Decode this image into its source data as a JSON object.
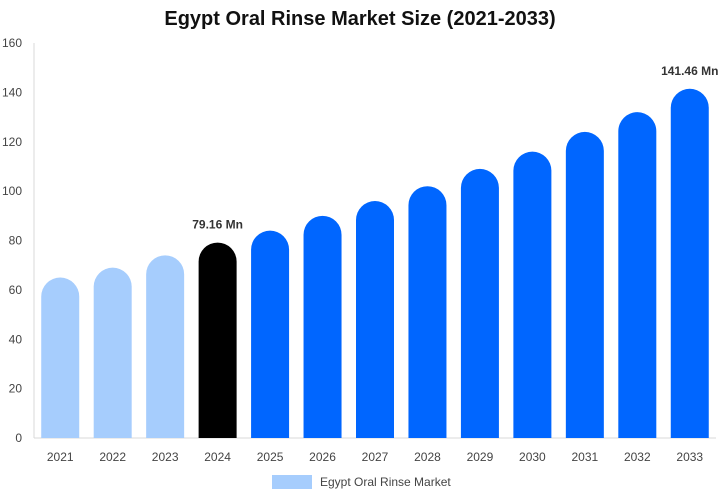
{
  "chart_data": {
    "type": "bar",
    "title": "Egypt Oral Rinse Market Size (2021-2033)",
    "xlabel": "",
    "ylabel": "",
    "ylim": [
      0,
      160
    ],
    "yticks": [
      "0",
      "20",
      "40",
      "60",
      "80",
      "100",
      "120",
      "140",
      "160"
    ],
    "categories": [
      "2021",
      "2022",
      "2023",
      "2024",
      "2025",
      "2026",
      "2027",
      "2028",
      "2029",
      "2030",
      "2031",
      "2032",
      "2033"
    ],
    "series": [
      {
        "name": "Egypt Oral Rinse Market",
        "values": [
          65,
          69,
          74,
          79.16,
          84,
          90,
          96,
          102,
          109,
          116,
          124,
          132,
          141.46
        ]
      }
    ],
    "bar_colors": [
      "#a6cdfd",
      "#a6cdfd",
      "#a6cdfd",
      "#000000",
      "#0066ff",
      "#0066ff",
      "#0066ff",
      "#0066ff",
      "#0066ff",
      "#0066ff",
      "#0066ff",
      "#0066ff",
      "#0066ff"
    ],
    "data_labels": [
      {
        "index": 3,
        "text": "79.16 Mn"
      },
      {
        "index": 12,
        "text": "141.46 Mn"
      }
    ],
    "grid": false,
    "legend": {
      "position": "bottom",
      "label": "Egypt Oral Rinse Market",
      "color": "#a6cdfd"
    }
  }
}
